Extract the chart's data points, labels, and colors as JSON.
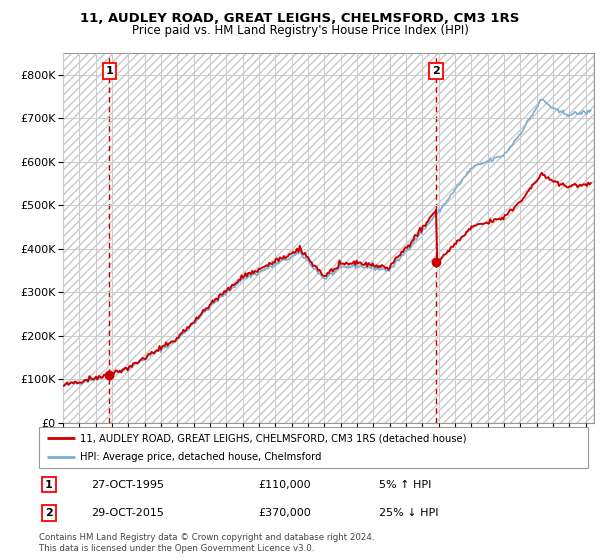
{
  "title": "11, AUDLEY ROAD, GREAT LEIGHS, CHELMSFORD, CM3 1RS",
  "subtitle": "Price paid vs. HM Land Registry's House Price Index (HPI)",
  "ylim": [
    0,
    850000
  ],
  "yticks": [
    0,
    100000,
    200000,
    300000,
    400000,
    500000,
    600000,
    700000,
    800000
  ],
  "ytick_labels": [
    "£0",
    "£100K",
    "£200K",
    "£300K",
    "£400K",
    "£500K",
    "£600K",
    "£700K",
    "£800K"
  ],
  "xlim_min": 1993,
  "xlim_max": 2025.5,
  "sale1_year": 1995.83,
  "sale1_price": 110000,
  "sale2_year": 2015.83,
  "sale2_price": 370000,
  "legend_entry1": "11, AUDLEY ROAD, GREAT LEIGHS, CHELMSFORD, CM3 1RS (detached house)",
  "legend_entry2": "HPI: Average price, detached house, Chelmsford",
  "annotation1_date": "27-OCT-1995",
  "annotation1_price": "£110,000",
  "annotation1_hpi": "5% ↑ HPI",
  "annotation2_date": "29-OCT-2015",
  "annotation2_price": "£370,000",
  "annotation2_hpi": "25% ↓ HPI",
  "footer": "Contains HM Land Registry data © Crown copyright and database right 2024.\nThis data is licensed under the Open Government Licence v3.0.",
  "price_color": "#cc0000",
  "hpi_color": "#7bafd4",
  "grid_color": "#cccccc",
  "title_fontsize": 9.5,
  "subtitle_fontsize": 8.5
}
